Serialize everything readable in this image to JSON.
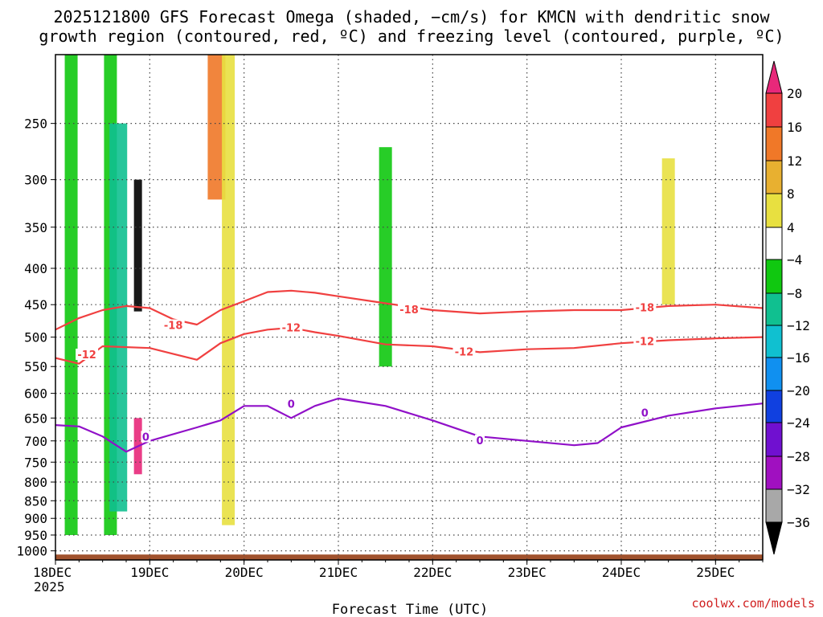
{
  "header": {
    "title_line1": "2025121800 GFS Forecast Omega (shaded, −cm/s) for KMCN with dendritic snow",
    "title_line2": "growth region (contoured, red, ºC) and freezing level (contoured, purple, ºC)"
  },
  "footer": {
    "xlabel": "Forecast Time (UTC)",
    "credit": "coolwx.com/models",
    "year_label": "2025"
  },
  "colors": {
    "dgz_contour": "#f04040",
    "freezing_contour": "#9010c8",
    "terrain": "#a0522d",
    "grid": "#444444"
  },
  "colorbar": {
    "labels": [
      "20",
      "16",
      "12",
      "8",
      "4",
      "−4",
      "−8",
      "−12",
      "−16",
      "−20",
      "−24",
      "−28",
      "−32",
      "−36"
    ],
    "colors": [
      "#e8287a",
      "#f04040",
      "#f07828",
      "#e8b030",
      "#e8e040",
      "#ffffff",
      "#10c810",
      "#10c090",
      "#10c0d0",
      "#1090f0",
      "#1040e0",
      "#7010d0",
      "#a010c0",
      "#a8a8a8",
      "#000000"
    ]
  },
  "chart_data": {
    "type": "heatmap",
    "title": "2025121800 GFS Forecast Omega (shaded, −cm/s) for KMCN with dendritic snow growth region (contoured, red, ºC) and freezing level (contoured, purple, ºC)",
    "xlabel": "Forecast Time (UTC)",
    "ylabel": "",
    "y_scale": "log-pressure",
    "y_range_hPa": [
      1030,
      200
    ],
    "x_range": [
      "2025-12-18T00",
      "2025-12-25T12"
    ],
    "x_ticks": [
      "18DEC",
      "19DEC",
      "20DEC",
      "21DEC",
      "22DEC",
      "23DEC",
      "24DEC",
      "25DEC"
    ],
    "y_ticks": [
      250,
      300,
      350,
      400,
      450,
      500,
      550,
      600,
      650,
      700,
      750,
      800,
      850,
      900,
      950,
      1000
    ],
    "grid": true,
    "contours": [
      {
        "name": "-18",
        "color": "#f04040",
        "points": [
          [
            "2025-12-18T00",
            488
          ],
          [
            "2025-12-18T06",
            470
          ],
          [
            "2025-12-18T12",
            458
          ],
          [
            "2025-12-18T18",
            452
          ],
          [
            "2025-12-19T00",
            455
          ],
          [
            "2025-12-19T06",
            472
          ],
          [
            "2025-12-19T12",
            480
          ],
          [
            "2025-12-19T18",
            458
          ],
          [
            "2025-12-20T00",
            445
          ],
          [
            "2025-12-20T06",
            432
          ],
          [
            "2025-12-20T12",
            430
          ],
          [
            "2025-12-20T18",
            433
          ],
          [
            "2025-12-21T00",
            438
          ],
          [
            "2025-12-21T12",
            448
          ],
          [
            "2025-12-22T00",
            458
          ],
          [
            "2025-12-22T12",
            463
          ],
          [
            "2025-12-23T00",
            460
          ],
          [
            "2025-12-23T12",
            458
          ],
          [
            "2025-12-24T00",
            458
          ],
          [
            "2025-12-24T12",
            452
          ],
          [
            "2025-12-25T00",
            450
          ],
          [
            "2025-12-25T12",
            455
          ]
        ]
      },
      {
        "name": "-12",
        "color": "#f04040",
        "points": [
          [
            "2025-12-18T00",
            535
          ],
          [
            "2025-12-18T06",
            545
          ],
          [
            "2025-12-18T09",
            530
          ],
          [
            "2025-12-18T12",
            515
          ],
          [
            "2025-12-19T00",
            518
          ],
          [
            "2025-12-19T06",
            528
          ],
          [
            "2025-12-19T12",
            538
          ],
          [
            "2025-12-19T18",
            510
          ],
          [
            "2025-12-20T00",
            495
          ],
          [
            "2025-12-20T06",
            488
          ],
          [
            "2025-12-20T12",
            485
          ],
          [
            "2025-12-20T18",
            492
          ],
          [
            "2025-12-21T00",
            498
          ],
          [
            "2025-12-21T12",
            512
          ],
          [
            "2025-12-22T00",
            515
          ],
          [
            "2025-12-22T12",
            525
          ],
          [
            "2025-12-23T00",
            520
          ],
          [
            "2025-12-23T12",
            518
          ],
          [
            "2025-12-24T00",
            510
          ],
          [
            "2025-12-24T12",
            505
          ],
          [
            "2025-12-25T00",
            502
          ],
          [
            "2025-12-25T12",
            500
          ]
        ]
      },
      {
        "name": "0",
        "color": "#9010c8",
        "points": [
          [
            "2025-12-18T00",
            665
          ],
          [
            "2025-12-18T06",
            668
          ],
          [
            "2025-12-18T12",
            690
          ],
          [
            "2025-12-18T18",
            725
          ],
          [
            "2025-12-19T00",
            700
          ],
          [
            "2025-12-19T12",
            670
          ],
          [
            "2025-12-19T18",
            655
          ],
          [
            "2025-12-20T00",
            625
          ],
          [
            "2025-12-20T06",
            625
          ],
          [
            "2025-12-20T12",
            650
          ],
          [
            "2025-12-20T18",
            625
          ],
          [
            "2025-12-21T00",
            610
          ],
          [
            "2025-12-21T12",
            625
          ],
          [
            "2025-12-22T00",
            655
          ],
          [
            "2025-12-22T12",
            690
          ],
          [
            "2025-12-23T00",
            700
          ],
          [
            "2025-12-23T12",
            710
          ],
          [
            "2025-12-23T18",
            705
          ],
          [
            "2025-12-24T00",
            670
          ],
          [
            "2025-12-24T12",
            645
          ],
          [
            "2025-12-25T00",
            630
          ],
          [
            "2025-12-25T12",
            620
          ]
        ]
      }
    ],
    "contour_labels": [
      {
        "text": "-18",
        "time": "2025-12-19T06",
        "p": 482,
        "color": "#f04040"
      },
      {
        "text": "-18",
        "time": "2025-12-21T18",
        "p": 458,
        "color": "#f04040"
      },
      {
        "text": "-18",
        "time": "2025-12-24T06",
        "p": 455,
        "color": "#f04040"
      },
      {
        "text": "-12",
        "time": "2025-12-18T08",
        "p": 530,
        "color": "#f04040"
      },
      {
        "text": "-12",
        "time": "2025-12-20T12",
        "p": 486,
        "color": "#f04040"
      },
      {
        "text": "-12",
        "time": "2025-12-22T08",
        "p": 525,
        "color": "#f04040"
      },
      {
        "text": "-12",
        "time": "2025-12-24T06",
        "p": 508,
        "color": "#f04040"
      },
      {
        "text": "0",
        "time": "2025-12-18T23",
        "p": 692,
        "color": "#9010c8"
      },
      {
        "text": "0",
        "time": "2025-12-20T12",
        "p": 622,
        "color": "#9010c8"
      },
      {
        "text": "0",
        "time": "2025-12-22T12",
        "p": 700,
        "color": "#9010c8"
      },
      {
        "text": "0",
        "time": "2025-12-24T06",
        "p": 640,
        "color": "#9010c8"
      }
    ],
    "shaded_regions": [
      {
        "value": -8,
        "time": "2025-12-18T04",
        "p_top": 200,
        "p_bottom": 950
      },
      {
        "value": -8,
        "time": "2025-12-18T14",
        "p_top": 200,
        "p_bottom": 950
      },
      {
        "value": -12,
        "time": "2025-12-18T16",
        "p_top": 250,
        "p_bottom": 880
      },
      {
        "value": -36,
        "time": "2025-12-18T21",
        "p_top": 300,
        "p_bottom": 460
      },
      {
        "value": 20,
        "time": "2025-12-18T21",
        "p_top": 650,
        "p_bottom": 780
      },
      {
        "value": 12,
        "time": "2025-12-19T17",
        "p_top": 200,
        "p_bottom": 320
      },
      {
        "value": 4,
        "time": "2025-12-19T20",
        "p_top": 200,
        "p_bottom": 920
      },
      {
        "value": -8,
        "time": "2025-12-21T12",
        "p_top": 270,
        "p_bottom": 550
      },
      {
        "value": 4,
        "time": "2025-12-24T12",
        "p_top": 280,
        "p_bottom": 450
      }
    ]
  }
}
